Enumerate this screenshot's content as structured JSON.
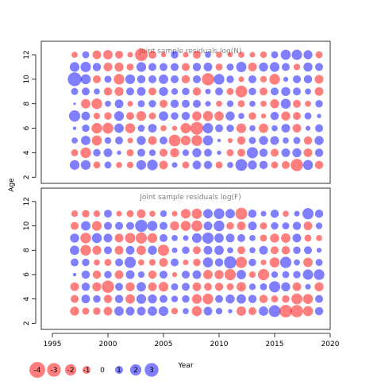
{
  "chart_data": {
    "type": "scatter",
    "subtype": "bubble",
    "xlabel": "Year",
    "ylabel": "Age",
    "xlim": [
      1994,
      2020
    ],
    "xticks": [
      1995,
      2000,
      2005,
      2010,
      2015,
      2020
    ],
    "ylim": [
      1.5,
      13.1
    ],
    "yticks": [
      2,
      4,
      6,
      8,
      10,
      12
    ],
    "colors": {
      "positive": "#0000ff",
      "negative": "#ff0000",
      "fill_opacity": 0.5
    },
    "years": [
      1997,
      1998,
      1999,
      2000,
      2001,
      2002,
      2003,
      2004,
      2005,
      2006,
      2007,
      2008,
      2009,
      2010,
      2011,
      2012,
      2013,
      2014,
      2015,
      2016,
      2017,
      2018,
      2019
    ],
    "panels": [
      {
        "title": "Joint sample residuals log(N)",
        "ages": [
          3,
          4,
          5,
          6,
          7,
          8,
          9,
          10,
          11,
          12
        ],
        "residuals": [
          [
            1.5,
            1.5,
            -0.8,
            0.8,
            -0.6,
            -0.7,
            1.5,
            1.8,
            -1.2,
            0.5,
            -0.8,
            1.2,
            1.1,
            -0.8,
            0.6,
            2.2,
            1.3,
            1.1,
            -0.8,
            -1.0,
            -2.4,
            1.6,
            -1.1
          ],
          [
            -0.8,
            -1.8,
            0.9,
            1.2,
            0.3,
            -0.8,
            1.0,
            0.7,
            -1.0,
            -1.3,
            0.7,
            1.3,
            1.0,
            0.3,
            -0.8,
            -1.0,
            2.0,
            1.1,
            -1.0,
            1.2,
            1.3,
            -1.2,
            1.1
          ],
          [
            0.6,
            1.4,
            -1.6,
            0.7,
            1.0,
            -0.5,
            1.3,
            -1.2,
            1.0,
            -2.2,
            -1.5,
            -1.9,
            1.6,
            0.2,
            -0.4,
            -1.1,
            0.8,
            1.3,
            1.2,
            0.6,
            0.8,
            -1.1,
            1.3
          ],
          [
            0.2,
            0.9,
            -1.8,
            -1.9,
            1.4,
            -1.6,
            0.8,
            1.2,
            -0.6,
            -0.4,
            -1.7,
            -2.6,
            1.7,
            1.0,
            0.9,
            -1.5,
            0.6,
            -1.4,
            0.6,
            1.2,
            -1.2,
            0.4,
            1.0
          ],
          [
            2.0,
            1.2,
            -0.7,
            -0.9,
            1.5,
            -1.0,
            -1.5,
            -0.8,
            1.4,
            0.9,
            1.1,
            -1.4,
            -1.6,
            -1.4,
            1.3,
            0.6,
            -0.9,
            -0.4,
            1.1,
            -1.3,
            -1.0,
            0.8,
            0.3
          ],
          [
            0.1,
            -1.4,
            -1.8,
            0.6,
            1.2,
            -0.5,
            0.8,
            0.9,
            -1.0,
            1.1,
            1.0,
            1.0,
            0.5,
            -0.6,
            0.7,
            -0.8,
            0.6,
            -0.6,
            -1.3,
            1.6,
            -1.0,
            -0.6,
            0.9
          ],
          [
            0.8,
            1.0,
            0.6,
            -1.1,
            -1.3,
            1.0,
            1.2,
            -1.0,
            1.3,
            0.7,
            0.9,
            -1.1,
            0.5,
            1.0,
            -0.8,
            -2.2,
            0.9,
            -1.0,
            1.0,
            1.3,
            1.0,
            0.6,
            -1.2
          ],
          [
            3.0,
            1.6,
            -1.0,
            0.8,
            -1.8,
            1.5,
            1.1,
            1.0,
            1.4,
            1.0,
            -1.1,
            1.0,
            -2.4,
            1.8,
            0.9,
            -0.5,
            1.0,
            -0.7,
            -1.8,
            0.4,
            1.0,
            1.1,
            -1.2
          ],
          [
            1.5,
            1.7,
            1.1,
            -1.2,
            -1.3,
            -0.8,
            1.5,
            1.0,
            1.0,
            1.0,
            -1.0,
            1.1,
            1.2,
            -0.8,
            0.8,
            1.7,
            -1.2,
            1.3,
            1.5,
            1.0,
            -0.7,
            1.3,
            1.0
          ],
          [
            -0.6,
            0.8,
            -1.2,
            -1.4,
            -1.0,
            -0.5,
            -2.5,
            -1.0,
            -0.4,
            0.9,
            -0.5,
            -1.0,
            0.6,
            -0.6,
            -0.4,
            -0.6,
            -0.5,
            -0.7,
            0.8,
            1.6,
            1.7,
            1.3,
            -0.8
          ]
        ]
      },
      {
        "title": "Joint sample residuals log(F)",
        "ages": [
          3,
          4,
          5,
          6,
          7,
          8,
          9,
          10,
          11
        ],
        "residuals": [
          [
            -1.3,
            -0.8,
            -0.9,
            -1.2,
            1.4,
            1.2,
            1.2,
            1.4,
            1.5,
            -0.7,
            0.6,
            -1.6,
            1.2,
            0.7,
            0.3,
            -1.4,
            -1.0,
            1.4,
            2.2,
            -2.5,
            -2.4,
            -1.6,
            1.1
          ],
          [
            -1.0,
            1.2,
            0.9,
            -1.1,
            1.1,
            -1.4,
            1.5,
            1.3,
            1.0,
            0.7,
            0.9,
            -1.5,
            -1.8,
            1.0,
            1.3,
            1.4,
            1.1,
            -1.1,
            -0.8,
            -0.9,
            -1.9,
            -1.6,
            1.0
          ],
          [
            -1.2,
            1.1,
            -1.3,
            -2.4,
            1.0,
            -1.3,
            1.4,
            -1.2,
            -1.5,
            0.8,
            1.0,
            -1.2,
            -1.0,
            -1.1,
            -0.8,
            -1.4,
            0.7,
            0.8,
            2.0,
            1.3,
            -1.2,
            0.5,
            -1.3
          ],
          [
            0.2,
            1.1,
            -1.1,
            0.9,
            -1.2,
            1.2,
            0.7,
            -1.1,
            1.0,
            -0.4,
            1.0,
            1.2,
            -1.4,
            -1.3,
            -2.0,
            1.4,
            -0.7,
            -2.0,
            0.7,
            0.8,
            0.9,
            1.7,
            1.8
          ],
          [
            1.0,
            0.9,
            -0.6,
            -0.8,
            1.0,
            2.0,
            -0.6,
            -0.7,
            -1.2,
            1.0,
            -0.5,
            -0.9,
            1.6,
            1.1,
            2.4,
            -2.0,
            0.9,
            -0.5,
            -1.6,
            2.0,
            0.6,
            -1.4,
            0.8
          ],
          [
            1.4,
            -1.8,
            -1.3,
            1.0,
            -1.2,
            1.2,
            -1.4,
            1.3,
            -2.0,
            0.5,
            0.9,
            -1.0,
            1.2,
            1.4,
            0.6,
            -1.0,
            0.6,
            1.2,
            -1.0,
            -1.1,
            0.9,
            1.0,
            0.4
          ],
          [
            1.3,
            -1.8,
            1.6,
            1.2,
            -1.2,
            -1.7,
            -2.0,
            -1.5,
            1.0,
            0.6,
            0.5,
            1.5,
            2.0,
            1.4,
            1.2,
            1.0,
            0.6,
            -0.8,
            -1.3,
            -1.4,
            1.2,
            -0.8,
            -0.6
          ],
          [
            -1.0,
            1.4,
            -1.5,
            1.0,
            1.0,
            1.0,
            2.4,
            1.6,
            1.0,
            -1.3,
            -1.6,
            -1.9,
            1.2,
            1.8,
            -0.9,
            -1.2,
            1.2,
            -0.8,
            0.9,
            0.8,
            1.1,
            -1.2,
            0.7
          ],
          [
            -0.7,
            -0.9,
            -0.7,
            1.0,
            -0.5,
            -0.8,
            -1.2,
            -0.6,
            0.7,
            -0.5,
            -1.5,
            -1.7,
            1.4,
            1.8,
            1.4,
            -2.2,
            1.1,
            0.5,
            1.1,
            -0.6,
            0.5,
            2.0,
            1.1
          ]
        ]
      }
    ],
    "legend": {
      "values": [
        -4,
        -3,
        -2,
        -1,
        0,
        1,
        2,
        3
      ],
      "labels": [
        "-4",
        "-3",
        "-2",
        "-1",
        "0",
        "1",
        "2",
        "3"
      ],
      "placement": "bottom-left"
    }
  }
}
